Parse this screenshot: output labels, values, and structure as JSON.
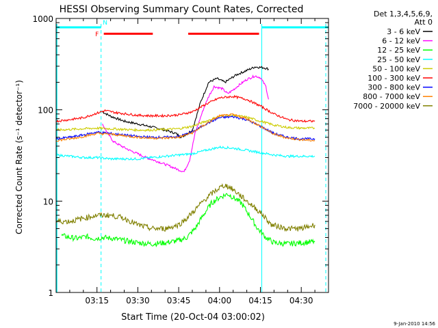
{
  "chart_data": {
    "type": "line",
    "title": "HESSI Observing Summary Count Rates, Corrected",
    "xlabel": "Start Time (20-Oct-04 03:00:02)",
    "ylabel": "Corrected Count Rate (s⁻¹ detector⁻¹)",
    "x_unit": "minutes after 03:00:02",
    "xlim": [
      0,
      100
    ],
    "ylim": [
      1,
      1000
    ],
    "yscale": "log",
    "x_ticks": [
      {
        "x": 15,
        "label": "03:15"
      },
      {
        "x": 30,
        "label": "03:30"
      },
      {
        "x": 45,
        "label": "03:45"
      },
      {
        "x": 60,
        "label": "04:00"
      },
      {
        "x": 75,
        "label": "04:15"
      },
      {
        "x": 90,
        "label": "04:30"
      }
    ],
    "y_ticks": [
      {
        "y": 1,
        "label": "1"
      },
      {
        "y": 10,
        "label": "10"
      },
      {
        "y": 100,
        "label": "100"
      },
      {
        "y": 1000,
        "label": "1000"
      }
    ],
    "legend_header": [
      "Det 1,3,4,5,6,9,",
      "Att 0"
    ],
    "legend_placement": "right",
    "series": [
      {
        "name": "3 - 6 keV",
        "color": "#000000",
        "points": [
          [
            17,
            95
          ],
          [
            20,
            85
          ],
          [
            25,
            75
          ],
          [
            30,
            70
          ],
          [
            35,
            65
          ],
          [
            40,
            60
          ],
          [
            44,
            55
          ],
          [
            46,
            50
          ],
          [
            50,
            60
          ],
          [
            53,
            120
          ],
          [
            56,
            200
          ],
          [
            59,
            220
          ],
          [
            62,
            200
          ],
          [
            66,
            240
          ],
          [
            70,
            270
          ],
          [
            73,
            295
          ],
          [
            76,
            290
          ],
          [
            78,
            280
          ]
        ]
      },
      {
        "name": "6 - 12 keV",
        "color": "#ff00ff",
        "points": [
          [
            17,
            70
          ],
          [
            19,
            55
          ],
          [
            21,
            45
          ],
          [
            24,
            40
          ],
          [
            27,
            36
          ],
          [
            30,
            33
          ],
          [
            33,
            30
          ],
          [
            36,
            28
          ],
          [
            39,
            26
          ],
          [
            42,
            24
          ],
          [
            45,
            22
          ],
          [
            47,
            21
          ],
          [
            49,
            28
          ],
          [
            51,
            55
          ],
          [
            54,
            100
          ],
          [
            56,
            140
          ],
          [
            58,
            180
          ],
          [
            61,
            170
          ],
          [
            63,
            150
          ],
          [
            65,
            165
          ],
          [
            67,
            185
          ],
          [
            70,
            215
          ],
          [
            73,
            235
          ],
          [
            75,
            225
          ],
          [
            77,
            180
          ],
          [
            78,
            130
          ]
        ]
      },
      {
        "name": "12 - 25 keV",
        "color": "#00ff00",
        "points": [
          [
            2,
            4.2
          ],
          [
            5,
            4.0
          ],
          [
            8,
            3.9
          ],
          [
            11,
            4.1
          ],
          [
            14,
            3.9
          ],
          [
            17,
            4.0
          ],
          [
            21,
            3.9
          ],
          [
            25,
            3.7
          ],
          [
            30,
            3.5
          ],
          [
            35,
            3.4
          ],
          [
            40,
            3.5
          ],
          [
            45,
            3.7
          ],
          [
            48,
            4.0
          ],
          [
            51,
            5
          ],
          [
            54,
            7
          ],
          [
            57,
            9.5
          ],
          [
            60,
            11
          ],
          [
            63,
            12
          ],
          [
            65,
            11
          ],
          [
            68,
            9.5
          ],
          [
            71,
            7
          ],
          [
            74,
            5
          ],
          [
            77,
            4
          ],
          [
            80,
            3.5
          ],
          [
            85,
            3.4
          ],
          [
            90,
            3.5
          ],
          [
            95,
            3.6
          ]
        ]
      },
      {
        "name": "25 - 50 keV",
        "color": "#00ffff",
        "points": [
          [
            0,
            32
          ],
          [
            5,
            31
          ],
          [
            10,
            30
          ],
          [
            15,
            30
          ],
          [
            20,
            29
          ],
          [
            25,
            29
          ],
          [
            30,
            29
          ],
          [
            35,
            30
          ],
          [
            40,
            31
          ],
          [
            45,
            32
          ],
          [
            50,
            33
          ],
          [
            55,
            36
          ],
          [
            60,
            39
          ],
          [
            65,
            38
          ],
          [
            70,
            36
          ],
          [
            75,
            34
          ],
          [
            80,
            32
          ],
          [
            85,
            31
          ],
          [
            90,
            31
          ],
          [
            95,
            31
          ]
        ]
      },
      {
        "name": "50 - 100 keV",
        "color": "#cccc00",
        "points": [
          [
            0,
            60
          ],
          [
            5,
            61
          ],
          [
            10,
            62
          ],
          [
            15,
            63
          ],
          [
            20,
            62
          ],
          [
            25,
            61
          ],
          [
            30,
            60
          ],
          [
            35,
            60
          ],
          [
            40,
            61
          ],
          [
            45,
            62
          ],
          [
            50,
            66
          ],
          [
            55,
            75
          ],
          [
            60,
            85
          ],
          [
            65,
            87
          ],
          [
            70,
            83
          ],
          [
            75,
            75
          ],
          [
            80,
            68
          ],
          [
            85,
            64
          ],
          [
            90,
            63
          ],
          [
            95,
            63
          ]
        ]
      },
      {
        "name": "100 - 300 keV",
        "color": "#ff0000",
        "points": [
          [
            0,
            75
          ],
          [
            5,
            78
          ],
          [
            10,
            82
          ],
          [
            15,
            92
          ],
          [
            18,
            98
          ],
          [
            22,
            93
          ],
          [
            26,
            90
          ],
          [
            30,
            87
          ],
          [
            35,
            86
          ],
          [
            40,
            86
          ],
          [
            45,
            88
          ],
          [
            50,
            95
          ],
          [
            55,
            115
          ],
          [
            60,
            135
          ],
          [
            65,
            140
          ],
          [
            70,
            130
          ],
          [
            75,
            110
          ],
          [
            80,
            90
          ],
          [
            85,
            78
          ],
          [
            90,
            75
          ],
          [
            95,
            75
          ]
        ]
      },
      {
        "name": "300 - 800 keV",
        "color": "#0000ff",
        "points": [
          [
            0,
            48
          ],
          [
            5,
            50
          ],
          [
            10,
            53
          ],
          [
            15,
            57
          ],
          [
            20,
            55
          ],
          [
            25,
            53
          ],
          [
            30,
            51
          ],
          [
            35,
            50
          ],
          [
            40,
            50
          ],
          [
            45,
            51
          ],
          [
            50,
            57
          ],
          [
            55,
            70
          ],
          [
            60,
            82
          ],
          [
            65,
            84
          ],
          [
            70,
            78
          ],
          [
            75,
            66
          ],
          [
            80,
            55
          ],
          [
            85,
            50
          ],
          [
            90,
            48
          ],
          [
            95,
            48
          ]
        ]
      },
      {
        "name": "800 - 7000 keV",
        "color": "#ff8000",
        "points": [
          [
            0,
            46
          ],
          [
            5,
            48
          ],
          [
            10,
            51
          ],
          [
            15,
            55
          ],
          [
            20,
            54
          ],
          [
            25,
            52
          ],
          [
            30,
            50
          ],
          [
            35,
            49
          ],
          [
            40,
            49
          ],
          [
            45,
            50
          ],
          [
            50,
            56
          ],
          [
            55,
            70
          ],
          [
            60,
            86
          ],
          [
            65,
            88
          ],
          [
            70,
            80
          ],
          [
            75,
            66
          ],
          [
            80,
            54
          ],
          [
            85,
            49
          ],
          [
            90,
            47
          ],
          [
            95,
            46
          ]
        ]
      },
      {
        "name": "7000 - 20000 keV",
        "color": "#808000",
        "points": [
          [
            0,
            6
          ],
          [
            5,
            6
          ],
          [
            10,
            6.5
          ],
          [
            15,
            7
          ],
          [
            20,
            7
          ],
          [
            25,
            6.5
          ],
          [
            30,
            5.5
          ],
          [
            35,
            5
          ],
          [
            40,
            5
          ],
          [
            45,
            5.5
          ],
          [
            48,
            6.5
          ],
          [
            51,
            8
          ],
          [
            54,
            10
          ],
          [
            57,
            12
          ],
          [
            60,
            14
          ],
          [
            62,
            15
          ],
          [
            64,
            14
          ],
          [
            67,
            12
          ],
          [
            70,
            10
          ],
          [
            73,
            8.5
          ],
          [
            76,
            7
          ],
          [
            79,
            5.5
          ],
          [
            85,
            5
          ],
          [
            90,
            5
          ],
          [
            95,
            5.5
          ]
        ]
      }
    ],
    "flag_bars": [
      {
        "label": "",
        "color": "#00ffff",
        "y": 800,
        "segments": [
          [
            0,
            16.5
          ],
          [
            75.5,
            100
          ]
        ]
      },
      {
        "label": "F",
        "color": "#ff0000",
        "y": 680,
        "segments": [
          [
            17.5,
            35.5
          ],
          [
            48.5,
            74.5
          ]
        ]
      }
    ],
    "flag_labels": [
      {
        "text": "N",
        "color": "#00ffff",
        "x": 18
      },
      {
        "text": "F",
        "color": "#ff0000",
        "x": 15
      }
    ],
    "night_boundaries": [
      16.5,
      75.5,
      99
    ]
  },
  "footer": {
    "timestamp": "9-Jan-2010 14:56"
  }
}
